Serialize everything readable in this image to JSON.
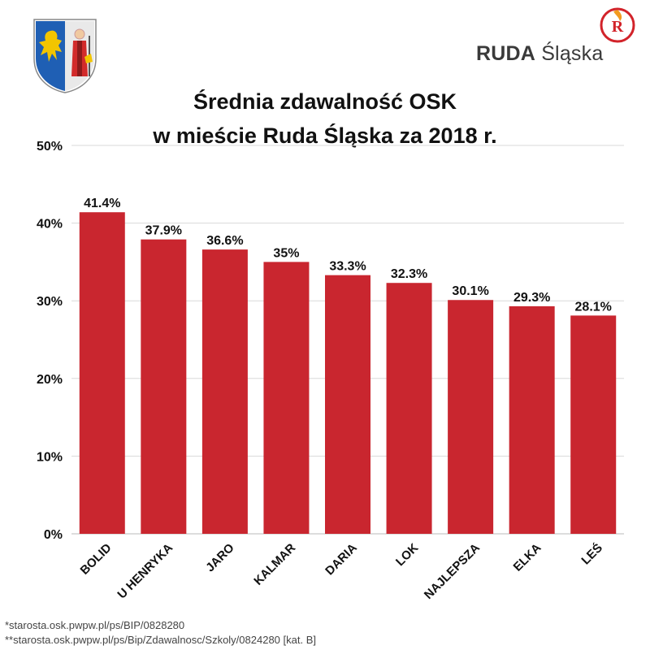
{
  "header": {
    "title_line1": "Średnia zdawalność OSK",
    "title_line2": "w mieście Ruda Śląska za 2018 r.",
    "brand_bold": "RUDA",
    "brand_regular": "Śląska",
    "logo_letter": "R"
  },
  "colors": {
    "bar": "#c9262f",
    "grid": "#d9d9d9",
    "text": "#111111",
    "brand_red": "#d2232a"
  },
  "chart_data": {
    "type": "bar",
    "title": "Średnia zdawalność OSK w mieście Ruda Śląska za 2018 r.",
    "xlabel": "",
    "ylabel": "",
    "categories": [
      "BOLID",
      "U HENRYKA",
      "JARO",
      "KALMAR",
      "DARIA",
      "LOK",
      "NAJLEPSZA",
      "ELKA",
      "LEŚ"
    ],
    "values": [
      41.4,
      37.9,
      36.6,
      35,
      33.3,
      32.3,
      30.1,
      29.3,
      28.1
    ],
    "value_labels": [
      "41.4%",
      "37.9%",
      "36.6%",
      "35%",
      "33.3%",
      "32.3%",
      "30.1%",
      "29.3%",
      "28.1%"
    ],
    "ylim": [
      0,
      50
    ],
    "yticks": [
      0,
      10,
      20,
      30,
      40,
      50
    ],
    "ytick_labels": [
      "0%",
      "10%",
      "20%",
      "30%",
      "40%",
      "50%"
    ],
    "grid": true,
    "legend": "none"
  },
  "footnotes": [
    "*starosta.osk.pwpw.pl/ps/BIP/0828280",
    "**starosta.osk.pwpw.pl/ps/Bip/Zdawalnosc/Szkoly/0824280 [kat. B]"
  ]
}
